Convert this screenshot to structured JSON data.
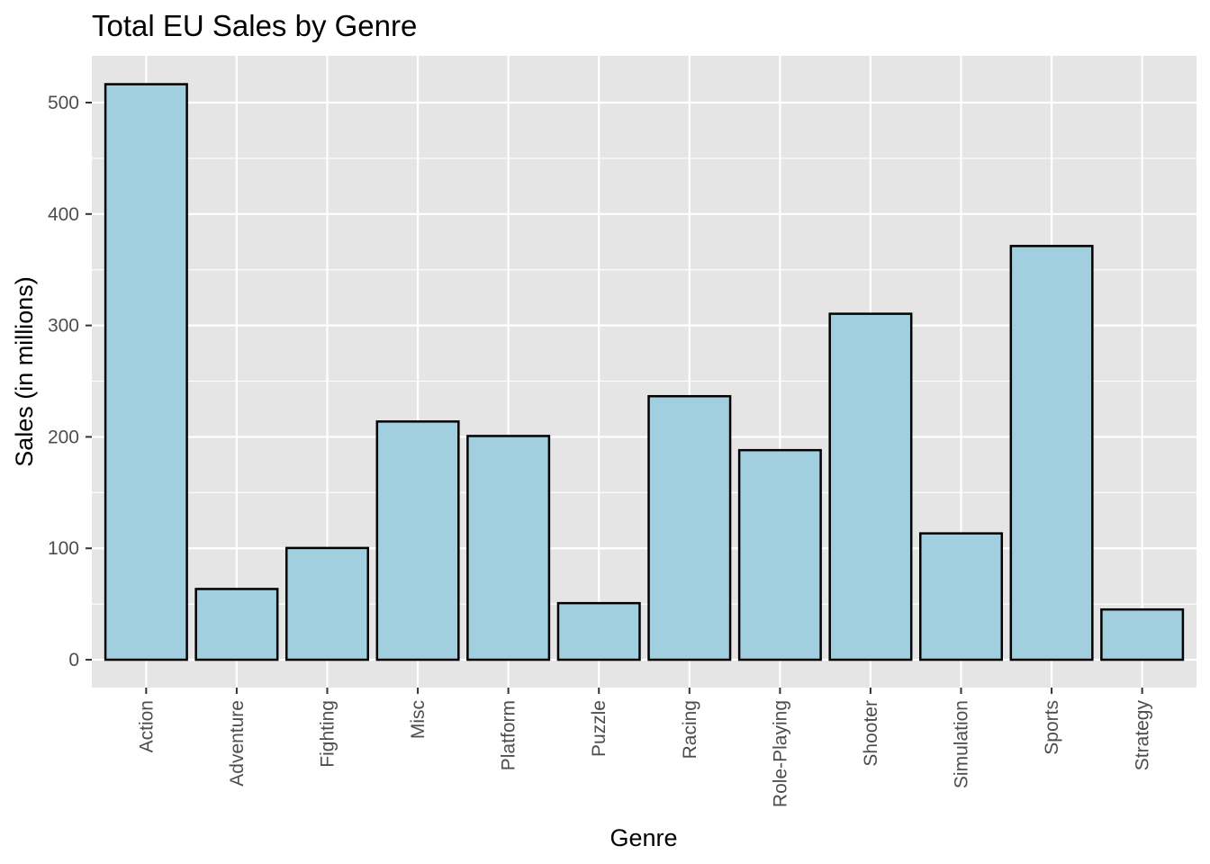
{
  "chart_data": {
    "type": "bar",
    "title": "Total EU Sales by Genre",
    "xlabel": "Genre",
    "ylabel": "Sales (in millions)",
    "categories": [
      "Action",
      "Adventure",
      "Fighting",
      "Misc",
      "Platform",
      "Puzzle",
      "Racing",
      "Role-Playing",
      "Shooter",
      "Simulation",
      "Sports",
      "Strategy"
    ],
    "values": [
      516.5,
      63.5,
      100.3,
      213.8,
      200.8,
      50.8,
      236.5,
      188.1,
      310.5,
      113.4,
      371.3,
      45.1
    ],
    "ylim": [
      -25,
      542
    ],
    "yticks": [
      0,
      100,
      200,
      300,
      400,
      500
    ],
    "ytick_labels": [
      "0",
      "100",
      "200",
      "300",
      "400",
      "500"
    ],
    "grid": true,
    "legend": "none",
    "colors": {
      "bar_fill": "#a1cfe0",
      "bar_stroke": "#000000",
      "panel_background": "#e5e5e5",
      "grid": "#ffffff",
      "tick_label": "#4d4d4d"
    }
  }
}
